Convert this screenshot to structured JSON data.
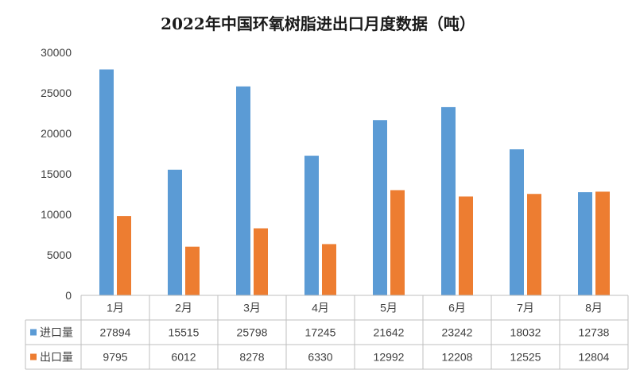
{
  "chart_data": {
    "type": "bar",
    "title": "2022年中国环氧树脂进出口月度数据（吨）",
    "categories": [
      "1月",
      "2月",
      "3月",
      "4月",
      "5月",
      "6月",
      "7月",
      "8月"
    ],
    "series": [
      {
        "name": "进口量",
        "color": "#5b9bd5",
        "values": [
          27894,
          15515,
          25798,
          17245,
          21642,
          23242,
          18032,
          12738
        ]
      },
      {
        "name": "出口量",
        "color": "#ed7d31",
        "values": [
          9795,
          6012,
          8278,
          6330,
          12992,
          12208,
          12525,
          12804
        ]
      }
    ],
    "ylim": [
      0,
      30000
    ],
    "yticks": [
      0,
      5000,
      10000,
      15000,
      20000,
      25000,
      30000
    ],
    "grid": false,
    "legend": "data-table",
    "data_table": true
  }
}
